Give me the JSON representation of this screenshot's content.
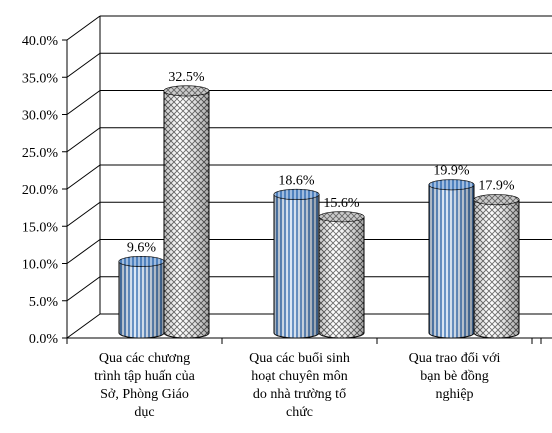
{
  "chart_data": {
    "type": "bar",
    "categories": [
      [
        "Qua các chương",
        "trình tập huấn của",
        "Sở, Phòng Giáo",
        "dục"
      ],
      [
        "Qua các buổi sinh",
        "hoạt chuyên môn",
        "do nhà trường tổ",
        "chức"
      ],
      [
        "Qua trao đổi với",
        "bạn bè đồng",
        "nghiệp"
      ]
    ],
    "series": [
      {
        "values": [
          9.6,
          18.6,
          19.9
        ],
        "labels": [
          "9.6%",
          "18.6%",
          "19.9%"
        ],
        "pattern": "vertical-stripes",
        "color": "#4f81bd"
      },
      {
        "values": [
          32.5,
          15.6,
          17.9
        ],
        "labels": [
          "32.5%",
          "15.6%",
          "17.9%"
        ],
        "pattern": "crosshatch",
        "color": "#808080"
      }
    ],
    "ylim": [
      0,
      40
    ],
    "yticks": [
      "0.0%",
      "5.0%",
      "10.0%",
      "15.0%",
      "20.0%",
      "25.0%",
      "30.0%",
      "35.0%",
      "40.0%"
    ],
    "grid": true,
    "style": "3d-cylinder"
  }
}
